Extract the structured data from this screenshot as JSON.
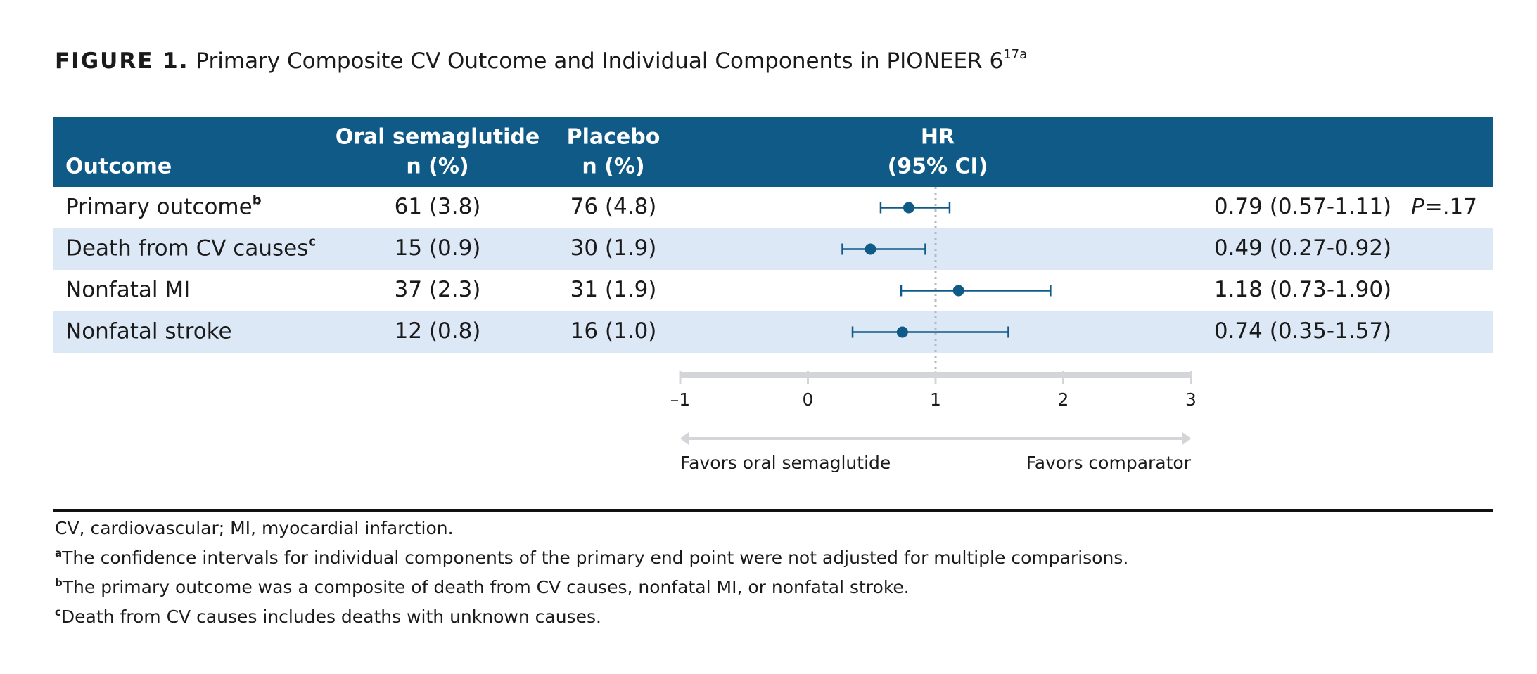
{
  "chart_data": {
    "type": "forest",
    "title_label": "FIGURE 1.",
    "title": "Primary Composite CV Outcome and Individual Components in PIONEER 6",
    "title_sup": "17a",
    "columns": {
      "outcome": "Outcome",
      "treatment": [
        "Oral semaglutide",
        "n (%)"
      ],
      "placebo": [
        "Placebo",
        "n (%)"
      ],
      "hr": [
        "HR",
        "(95% CI)"
      ]
    },
    "categories": [
      "Primary outcome",
      "Death from CV causes",
      "Nonfatal MI",
      "Nonfatal stroke"
    ],
    "category_sups": [
      "b",
      "c",
      null,
      null
    ],
    "treatment_n": [
      "61 (3.8)",
      "15 (0.9)",
      "37 (2.3)",
      "12 (0.8)"
    ],
    "placebo_n": [
      "76 (4.8)",
      "30 (1.9)",
      "31 (1.9)",
      "16 (1.0)"
    ],
    "values": [
      0.79,
      0.49,
      1.18,
      0.74
    ],
    "lower": [
      0.57,
      0.27,
      0.73,
      0.35
    ],
    "upper": [
      1.11,
      0.92,
      1.9,
      1.57
    ],
    "value_labels": [
      "0.79 (0.57-1.11)",
      "0.49 (0.27-0.92)",
      "1.18 (0.73-1.90)",
      "0.74 (0.35-1.57)"
    ],
    "p_symbol": "P",
    "p_values": [
      "=.17",
      null,
      null,
      null
    ],
    "xlim": [
      -1,
      3
    ],
    "xticks": [
      {
        "value": -1,
        "label": "–1"
      },
      0,
      1,
      2,
      3
    ],
    "reference_line": 1,
    "direction_labels": [
      "Favors oral semaglutide",
      "Favors comparator"
    ],
    "color": "#0f5a87",
    "header_color": "#0f5a87",
    "stripe_color": "#dde8f6",
    "footnotes": [
      {
        "mark": null,
        "text": "CV, cardiovascular; MI, myocardial infarction."
      },
      {
        "mark": "a",
        "text": "The confidence intervals for individual components of the primary end point were not adjusted for multiple comparisons."
      },
      {
        "mark": "b",
        "text": "The primary outcome was a composite of death from CV causes, nonfatal MI, or nonfatal stroke."
      },
      {
        "mark": "c",
        "text": "Death from CV causes includes deaths with unknown causes."
      }
    ]
  }
}
